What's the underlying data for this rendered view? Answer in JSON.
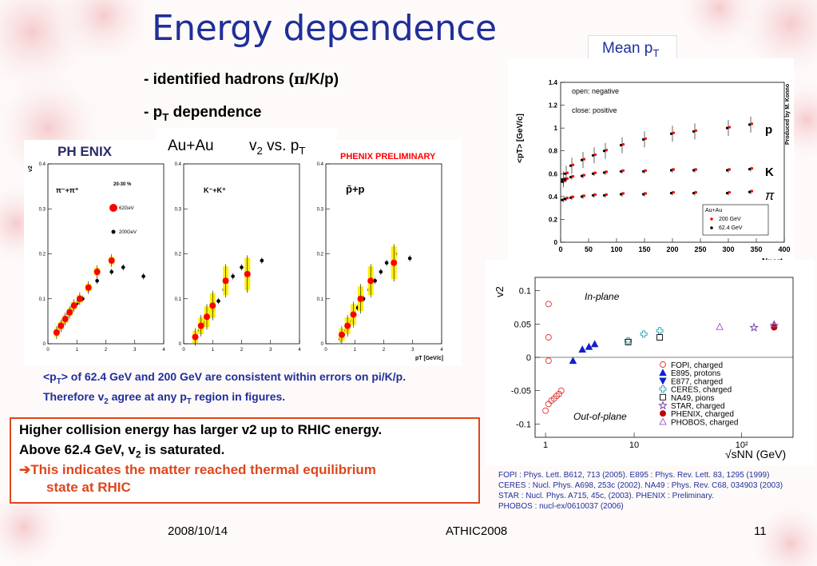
{
  "slide": {
    "title": "Energy dependence",
    "bullet1_prefix": "- ",
    "bullet1_text": "identified hadrons (",
    "bullet1_pi": "π",
    "bullet1_end": "/K/p)",
    "bullet2_prefix": "- ",
    "bullet2_p": "p",
    "bullet2_T": "T",
    "bullet2_rest": " dependence",
    "label_auau": "Au+Au",
    "label_v2": "v",
    "label_v2_sub": "2",
    "label_vs": " vs. p",
    "label_vs_sub": "T",
    "meanpt_label": "Mean p",
    "meanpt_sub": "T",
    "note_line1_a": "<p",
    "note_line1_b": "T",
    "note_line1_c": "> of 62.4 GeV and 200 GeV are consistent within errors on pi/K/p.",
    "note_line2_a": "Therefore v",
    "note_line2_b": "2",
    "note_line2_c": " agree at any p",
    "note_line2_d": "T",
    "note_line2_e": " region in figures.",
    "concl_line1": "Higher collision energy has larger v2 up to RHIC energy.",
    "concl_line2_a": "Above 62.4 GeV,  v",
    "concl_line2_b": "2",
    "concl_line2_c": " is saturated.",
    "concl_line3": "➔This indicates the matter reached thermal equilibrium",
    "concl_line4": "state at RHIC",
    "refs": [
      "FOPI : Phys. Lett. B612, 713 (2005).   E895 : Phys. Rev. Lett. 83, 1295 (1999)",
      "CERES : Nucl. Phys. A698, 253c (2002).   NA49 : Phys. Rev. C68, 034903 (2003)",
      "STAR : Nucl. Phys. A715, 45c, (2003).   PHENIX : Preliminary.",
      "PHOBOS : nucl-ex/0610037 (2006)"
    ],
    "footer_date": "2008/10/14",
    "footer_conf": "ATHIC2008",
    "footer_page": "11"
  },
  "colors": {
    "title": "#1f2f9a",
    "accent": "#e0461b",
    "phenix_red": "#ff0000",
    "yellow": "#ffee00"
  },
  "chart_data": [
    {
      "type": "scatter",
      "title": "",
      "logo_text": "PH ENIX",
      "preliminary": "PHENIX PRELIMINARY",
      "centrality": "20-30 %",
      "ylabel": "v2",
      "xlabel": "pT [GeV/c]",
      "ylim": [
        0,
        0.4
      ],
      "xlim": [
        0,
        4
      ],
      "yticks": [
        "0",
        "0.1",
        "0.2",
        "0.3",
        "0.4"
      ],
      "xticks": [
        "0",
        "1",
        "2",
        "3",
        "4"
      ],
      "legend_62": "62GeV",
      "legend_200": "200GeV",
      "panels": [
        {
          "label": "π⁻+π⁺",
          "series": [
            {
              "name": "200GeV",
              "x": [
                0.3,
                0.4,
                0.5,
                0.6,
                0.7,
                0.8,
                0.9,
                1.0,
                1.2,
                1.4,
                1.7,
                2.2,
                2.6,
                3.3
              ],
              "y": [
                0.025,
                0.035,
                0.045,
                0.055,
                0.065,
                0.075,
                0.082,
                0.09,
                0.1,
                0.12,
                0.14,
                0.16,
                0.17,
                0.15
              ]
            },
            {
              "name": "62GeV",
              "x": [
                0.3,
                0.45,
                0.6,
                0.75,
                0.9,
                1.1,
                1.4,
                1.7,
                2.2
              ],
              "y": [
                0.025,
                0.04,
                0.055,
                0.07,
                0.085,
                0.1,
                0.125,
                0.16,
                0.185
              ]
            }
          ]
        },
        {
          "label": "K⁻+K⁺",
          "series": [
            {
              "name": "200GeV",
              "x": [
                0.4,
                0.55,
                0.7,
                0.85,
                1.0,
                1.2,
                1.4,
                1.7,
                2.0,
                2.7
              ],
              "y": [
                0.015,
                0.03,
                0.045,
                0.06,
                0.075,
                0.095,
                0.12,
                0.15,
                0.17,
                0.185
              ]
            },
            {
              "name": "62GeV",
              "x": [
                0.4,
                0.6,
                0.8,
                1.0,
                1.45,
                2.2
              ],
              "y": [
                0.015,
                0.04,
                0.06,
                0.085,
                0.14,
                0.155
              ]
            }
          ]
        },
        {
          "label": "p̄+p",
          "series": [
            {
              "name": "200GeV",
              "x": [
                0.5,
                0.6,
                0.7,
                0.8,
                0.9,
                1.0,
                1.1,
                1.3,
                1.5,
                1.7,
                1.9,
                2.1,
                2.4,
                2.9
              ],
              "y": [
                0.01,
                0.02,
                0.03,
                0.04,
                0.05,
                0.065,
                0.08,
                0.1,
                0.12,
                0.14,
                0.16,
                0.18,
                0.2,
                0.19
              ]
            },
            {
              "name": "62GeV",
              "x": [
                0.55,
                0.75,
                0.95,
                1.2,
                1.55,
                2.35
              ],
              "y": [
                0.02,
                0.04,
                0.065,
                0.1,
                0.14,
                0.18
              ]
            }
          ]
        }
      ]
    },
    {
      "type": "scatter",
      "title": "",
      "ylabel": "<pT> [GeV/c]",
      "xlabel": "Npart",
      "xlim": [
        0,
        400
      ],
      "ylim": [
        0,
        1.4
      ],
      "xticks": [
        "0",
        "50",
        "100",
        "150",
        "200",
        "250",
        "300",
        "350",
        "400"
      ],
      "yticks": [
        "0",
        "0.2",
        "0.4",
        "0.6",
        "0.8",
        "1",
        "1.2",
        "1.4"
      ],
      "annotation1": "open: negative",
      "annotation2": "close: positive",
      "produced_by": "Produced by M. Konno",
      "legend_title": "Au+Au",
      "legend_200": "200 GeV",
      "legend_62": "62.4 GeV",
      "label_p": "p",
      "label_K": "K",
      "label_pi": "π",
      "series": [
        {
          "name": "p",
          "x": [
            5,
            10,
            20,
            40,
            60,
            80,
            110,
            150,
            200,
            240,
            300,
            340
          ],
          "y": [
            0.55,
            0.6,
            0.67,
            0.72,
            0.76,
            0.8,
            0.85,
            0.9,
            0.95,
            0.97,
            1.0,
            1.03
          ]
        },
        {
          "name": "K",
          "x": [
            5,
            10,
            20,
            40,
            60,
            80,
            110,
            150,
            200,
            240,
            300,
            340
          ],
          "y": [
            0.53,
            0.55,
            0.57,
            0.58,
            0.6,
            0.61,
            0.62,
            0.62,
            0.63,
            0.63,
            0.63,
            0.64
          ]
        },
        {
          "name": "π",
          "x": [
            5,
            10,
            20,
            40,
            60,
            80,
            110,
            150,
            200,
            240,
            300,
            340
          ],
          "y": [
            0.37,
            0.38,
            0.39,
            0.4,
            0.41,
            0.41,
            0.42,
            0.42,
            0.43,
            0.43,
            0.43,
            0.44
          ]
        }
      ]
    },
    {
      "type": "scatter",
      "title": "",
      "ylabel": "v2",
      "xlabel": "√sNN (GeV)",
      "ylim": [
        -0.12,
        0.12
      ],
      "yticks": [
        "0.1",
        "0.05",
        "0",
        "-0.05",
        "-0.1"
      ],
      "xticks": [
        "1",
        "10",
        "10²"
      ],
      "annotation_in": "In-plane",
      "annotation_out": "Out-of-plane",
      "legend": [
        "FOPI, charged",
        "E895, protons",
        "E877, charged",
        "CERES, charged",
        "NA49, pions",
        "STAR, charged",
        "PHENIX, charged",
        "PHOBOS, charged"
      ],
      "series": [
        {
          "name": "FOPI, charged",
          "x": [
            1.5,
            1.6,
            1.7,
            1.8,
            1.9,
            2.0,
            2.1,
            1.6,
            1.6,
            1.6
          ],
          "y": [
            -0.08,
            -0.07,
            -0.065,
            -0.062,
            -0.058,
            -0.055,
            -0.05,
            -0.005,
            0.03,
            0.08
          ]
        },
        {
          "name": "E895, protons",
          "x": [
            2.7,
            3.3,
            3.8,
            4.3
          ],
          "y": [
            -0.005,
            0.012,
            0.016,
            0.02
          ]
        },
        {
          "name": "CERES, charged",
          "x": [
            8.8,
            12.3,
            17.3
          ],
          "y": [
            0.025,
            0.035,
            0.04
          ]
        },
        {
          "name": "NA49, pions",
          "x": [
            8.8,
            17.3
          ],
          "y": [
            0.023,
            0.03
          ]
        },
        {
          "name": "STAR, charged",
          "x": [
            130,
            200
          ],
          "y": [
            0.045,
            0.048
          ]
        },
        {
          "name": "PHENIX, charged",
          "x": [
            200
          ],
          "y": [
            0.045
          ]
        },
        {
          "name": "PHOBOS, charged",
          "x": [
            62.4,
            200
          ],
          "y": [
            0.046,
            0.05
          ]
        }
      ]
    }
  ]
}
